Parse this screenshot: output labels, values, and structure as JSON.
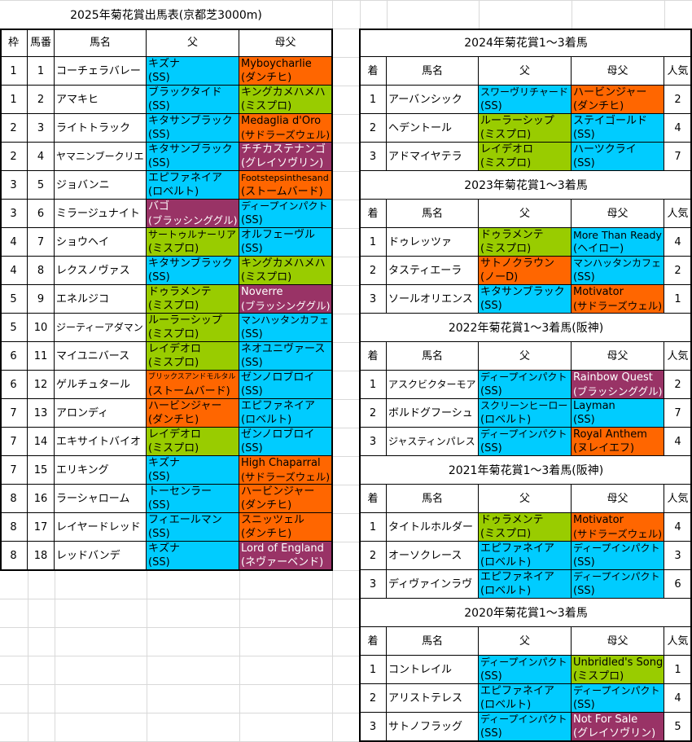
{
  "colors": {
    "blue": "#00CCFF",
    "orange": "#FF6600",
    "green": "#99CC00",
    "purple": "#993366"
  },
  "entries": {
    "title": "2025年菊花賞出馬表(京都芝3000m)",
    "headers": [
      "枠",
      "馬番",
      "馬名",
      "父",
      "母父"
    ],
    "rows": [
      {
        "waku": "1",
        "num": "1",
        "name": "コーチェラバレー",
        "sire": {
          "name": "キズナ",
          "line": "(SS)",
          "color": "blue"
        },
        "dam_sire": {
          "name": "Myboycharlie",
          "line": "(ダンチヒ)",
          "color": "orange"
        }
      },
      {
        "waku": "1",
        "num": "2",
        "name": "アマキヒ",
        "sire": {
          "name": "ブラックタイド",
          "line": "(SS)",
          "color": "blue"
        },
        "dam_sire": {
          "name": "キングカメハメハ",
          "line": "(ミスプロ)",
          "color": "green"
        }
      },
      {
        "waku": "2",
        "num": "3",
        "name": "ライトトラック",
        "sire": {
          "name": "キタサンブラック",
          "line": "(SS)",
          "color": "blue"
        },
        "dam_sire": {
          "name": "Medaglia d'Oro",
          "line": "(サドラーズウェル)",
          "color": "orange"
        }
      },
      {
        "waku": "2",
        "num": "4",
        "name": "ヤマニンブークリエ",
        "sire": {
          "name": "キタサンブラック",
          "line": "(SS)",
          "color": "blue"
        },
        "dam_sire": {
          "name": "チチカステナンゴ",
          "line": "(グレイソヴリン)",
          "color": "purple"
        }
      },
      {
        "waku": "3",
        "num": "5",
        "name": "ジョバンニ",
        "sire": {
          "name": "エピファネイア",
          "line": "(ロベルト)",
          "color": "blue"
        },
        "dam_sire": {
          "name": "Footstepsinthesand",
          "line": "(ストームバード)",
          "color": "orange"
        }
      },
      {
        "waku": "3",
        "num": "6",
        "name": "ミラージュナイト",
        "sire": {
          "name": "バゴ",
          "line": "(ブラッシンググル)",
          "color": "purple"
        },
        "dam_sire": {
          "name": "ディープインパクト",
          "line": "(SS)",
          "color": "blue"
        }
      },
      {
        "waku": "4",
        "num": "7",
        "name": "ショウヘイ",
        "sire": {
          "name": "サートゥルナーリア",
          "line": "(ミスプロ)",
          "color": "green"
        },
        "dam_sire": {
          "name": "オルフェーヴル",
          "line": "(SS)",
          "color": "blue"
        }
      },
      {
        "waku": "4",
        "num": "8",
        "name": "レクスノヴァス",
        "sire": {
          "name": "キタサンブラック",
          "line": "(SS)",
          "color": "blue"
        },
        "dam_sire": {
          "name": "キングカメハメハ",
          "line": "(ミスプロ)",
          "color": "green"
        }
      },
      {
        "waku": "5",
        "num": "9",
        "name": "エネルジコ",
        "sire": {
          "name": "ドゥラメンテ",
          "line": "(ミスプロ)",
          "color": "green"
        },
        "dam_sire": {
          "name": "Noverre",
          "line": "(ブラッシンググル)",
          "color": "purple"
        }
      },
      {
        "waku": "5",
        "num": "10",
        "name": "ジーティーアダマン",
        "sire": {
          "name": "ルーラーシップ",
          "line": "(ミスプロ)",
          "color": "green"
        },
        "dam_sire": {
          "name": "マンハッタンカフェ",
          "line": "(SS)",
          "color": "blue"
        }
      },
      {
        "waku": "6",
        "num": "11",
        "name": "マイユニバース",
        "sire": {
          "name": "レイデオロ",
          "line": "(ミスプロ)",
          "color": "green"
        },
        "dam_sire": {
          "name": "ネオユニヴァース",
          "line": "(SS)",
          "color": "blue"
        }
      },
      {
        "waku": "6",
        "num": "12",
        "name": "ゲルチュタール",
        "sire": {
          "name": "ブリックスアンドモルタル",
          "line": "(ストームバード)",
          "color": "orange"
        },
        "dam_sire": {
          "name": "ゼンノロブロイ",
          "line": "(SS)",
          "color": "blue"
        }
      },
      {
        "waku": "7",
        "num": "13",
        "name": "アロンディ",
        "sire": {
          "name": "ハービンジャー",
          "line": "(ダンチヒ)",
          "color": "orange"
        },
        "dam_sire": {
          "name": "エピファネイア",
          "line": "(ロベルト)",
          "color": "blue"
        }
      },
      {
        "waku": "7",
        "num": "14",
        "name": "エキサイトバイオ",
        "sire": {
          "name": "レイデオロ",
          "line": "(ミスプロ)",
          "color": "green"
        },
        "dam_sire": {
          "name": "ゼンノロブロイ",
          "line": "(SS)",
          "color": "blue"
        }
      },
      {
        "waku": "7",
        "num": "15",
        "name": "エリキング",
        "sire": {
          "name": "キズナ",
          "line": "(SS)",
          "color": "blue"
        },
        "dam_sire": {
          "name": "High Chaparral",
          "line": "(サドラーズウェル)",
          "color": "orange"
        }
      },
      {
        "waku": "8",
        "num": "16",
        "name": "ラーシャローム",
        "sire": {
          "name": "トーセンラー",
          "line": "(SS)",
          "color": "blue"
        },
        "dam_sire": {
          "name": "ハービンジャー",
          "line": "(ダンチヒ)",
          "color": "orange"
        }
      },
      {
        "waku": "8",
        "num": "17",
        "name": "レイヤードレッド",
        "sire": {
          "name": "フィエールマン",
          "line": "(SS)",
          "color": "blue"
        },
        "dam_sire": {
          "name": "スニッツェル",
          "line": "(ダンチヒ)",
          "color": "orange"
        }
      },
      {
        "waku": "8",
        "num": "18",
        "name": "レッドバンデ",
        "sire": {
          "name": "キズナ",
          "line": "(SS)",
          "color": "blue"
        },
        "dam_sire": {
          "name": "Lord of England",
          "line": "(ネヴァーベンド)",
          "color": "purple"
        }
      }
    ]
  },
  "past_headers": [
    "着",
    "馬名",
    "父",
    "母父",
    "人気"
  ],
  "past": [
    {
      "title": "2024年菊花賞1～3着馬",
      "rows": [
        {
          "pos": "1",
          "name": "アーバンシック",
          "sire": {
            "name": "スワーヴリチャード",
            "line": "(SS)",
            "color": "blue"
          },
          "dam_sire": {
            "name": "ハービンジャー",
            "line": "(ダンチヒ)",
            "color": "orange"
          },
          "pop": "2"
        },
        {
          "pos": "2",
          "name": "ヘデントール",
          "sire": {
            "name": "ルーラーシップ",
            "line": "(ミスプロ)",
            "color": "green"
          },
          "dam_sire": {
            "name": "ステイゴールド",
            "line": "(SS)",
            "color": "blue"
          },
          "pop": "4"
        },
        {
          "pos": "3",
          "name": "アドマイヤテラ",
          "sire": {
            "name": "レイデオロ",
            "line": "(ミスプロ)",
            "color": "green"
          },
          "dam_sire": {
            "name": "ハーツクライ",
            "line": "(SS)",
            "color": "blue"
          },
          "pop": "7"
        }
      ]
    },
    {
      "title": "2023年菊花賞1～3着馬",
      "rows": [
        {
          "pos": "1",
          "name": "ドゥレッツァ",
          "sire": {
            "name": "ドゥラメンテ",
            "line": "(ミスプロ)",
            "color": "green"
          },
          "dam_sire": {
            "name": "More Than Ready",
            "line": "(ヘイロー)",
            "color": "blue"
          },
          "pop": "4"
        },
        {
          "pos": "2",
          "name": "タスティエーラ",
          "sire": {
            "name": "サトノクラウン",
            "line": "(ノーD)",
            "color": "orange"
          },
          "dam_sire": {
            "name": "マンハッタンカフェ",
            "line": "(SS)",
            "color": "blue"
          },
          "pop": "2"
        },
        {
          "pos": "3",
          "name": "ソールオリエンス",
          "sire": {
            "name": "キタサンブラック",
            "line": "(SS)",
            "color": "blue"
          },
          "dam_sire": {
            "name": "Motivator",
            "line": "(サドラーズウェル)",
            "color": "orange"
          },
          "pop": "1"
        }
      ]
    },
    {
      "title": "2022年菊花賞1～3着馬(阪神)",
      "rows": [
        {
          "pos": "1",
          "name": "アスクビクターモア",
          "sire": {
            "name": "ディープインパクト",
            "line": "(SS)",
            "color": "blue"
          },
          "dam_sire": {
            "name": "Rainbow Quest",
            "line": "(ブラッシンググル)",
            "color": "purple"
          },
          "pop": "2"
        },
        {
          "pos": "2",
          "name": "ボルドグフーシュ",
          "sire": {
            "name": "スクリーンヒーロー",
            "line": "(ロベルト)",
            "color": "blue"
          },
          "dam_sire": {
            "name": "Layman",
            "line": "(SS)",
            "color": "blue"
          },
          "pop": "7"
        },
        {
          "pos": "3",
          "name": "ジャスティンパレス",
          "sire": {
            "name": "ディープインパクト",
            "line": "(SS)",
            "color": "blue"
          },
          "dam_sire": {
            "name": "Royal Anthem",
            "line": "(ヌレイエフ)",
            "color": "orange"
          },
          "pop": "4"
        }
      ]
    },
    {
      "title": "2021年菊花賞1～3着馬(阪神)",
      "rows": [
        {
          "pos": "1",
          "name": "タイトルホルダー",
          "sire": {
            "name": "ドゥラメンテ",
            "line": "(ミスプロ)",
            "color": "green"
          },
          "dam_sire": {
            "name": "Motivator",
            "line": "(サドラーズウェル)",
            "color": "orange"
          },
          "pop": "4"
        },
        {
          "pos": "2",
          "name": "オーソクレース",
          "sire": {
            "name": "エピファネイア",
            "line": "(ロベルト)",
            "color": "blue"
          },
          "dam_sire": {
            "name": "ディープインパクト",
            "line": "(SS)",
            "color": "blue"
          },
          "pop": "3"
        },
        {
          "pos": "3",
          "name": "ディヴァインラヴ",
          "sire": {
            "name": "エピファネイア",
            "line": "(ロベルト)",
            "color": "blue"
          },
          "dam_sire": {
            "name": "ディープインパクト",
            "line": "(SS)",
            "color": "blue"
          },
          "pop": "6"
        }
      ]
    },
    {
      "title": "2020年菊花賞1～3着馬",
      "rows": [
        {
          "pos": "1",
          "name": "コントレイル",
          "sire": {
            "name": "ディープインパクト",
            "line": "(SS)",
            "color": "blue"
          },
          "dam_sire": {
            "name": "Unbridled's Song",
            "line": "(ミスプロ)",
            "color": "green"
          },
          "pop": "1"
        },
        {
          "pos": "2",
          "name": "アリストテレス",
          "sire": {
            "name": "エピファネイア",
            "line": "(ロベルト)",
            "color": "blue"
          },
          "dam_sire": {
            "name": "ディープインパクト",
            "line": "(SS)",
            "color": "blue"
          },
          "pop": "4"
        },
        {
          "pos": "3",
          "name": "サトノフラッグ",
          "sire": {
            "name": "ディープインパクト",
            "line": "(SS)",
            "color": "blue"
          },
          "dam_sire": {
            "name": "Not For Sale",
            "line": "(グレイソヴリン)",
            "color": "purple"
          },
          "pop": "5"
        }
      ]
    }
  ]
}
